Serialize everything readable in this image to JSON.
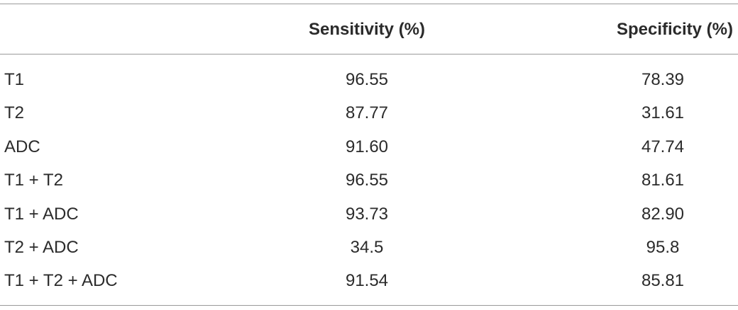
{
  "table": {
    "header": [
      "Sensitivity (%)",
      "Specificity (%)"
    ],
    "rows": [
      [
        "T1",
        "96.55",
        "78.39"
      ],
      [
        "T2",
        "87.77",
        "31.61"
      ],
      [
        "ADC",
        "91.60",
        "47.74"
      ],
      [
        "T1 + T2",
        "96.55",
        "81.61"
      ],
      [
        "T1 + ADC",
        "93.73",
        "82.90"
      ],
      [
        "T2 + ADC",
        "34.5",
        "95.8"
      ],
      [
        "T1 + T2 + ADC",
        "91.54",
        "85.81"
      ]
    ]
  }
}
